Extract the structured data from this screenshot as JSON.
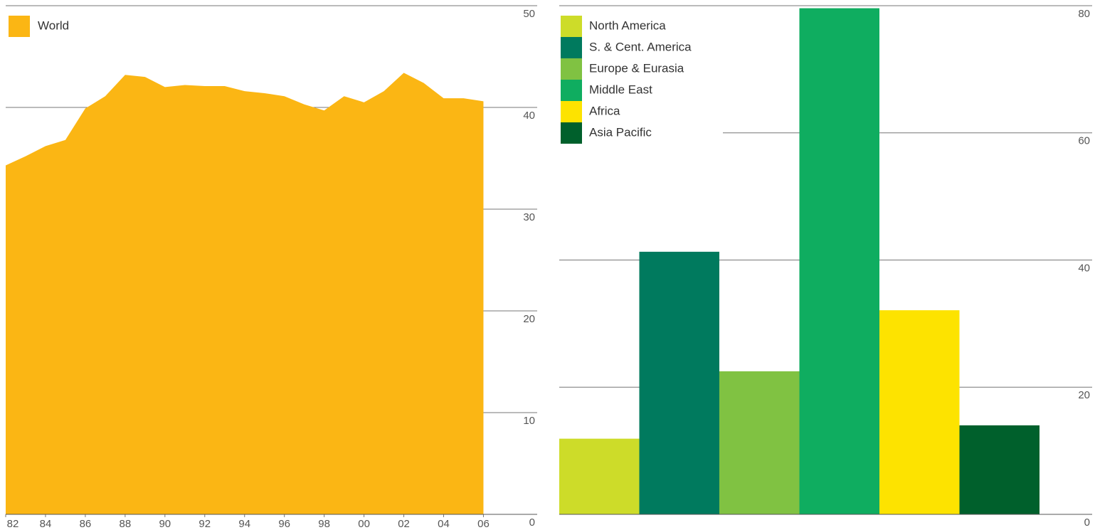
{
  "chart_data": [
    {
      "type": "area",
      "series": [
        {
          "name": "World",
          "color": "#fbb614",
          "values": [
            34.3,
            35.2,
            36.2,
            36.8,
            39.9,
            41.1,
            43.2,
            43.0,
            42.0,
            42.2,
            42.1,
            42.1,
            41.6,
            41.4,
            41.1,
            40.3,
            39.7,
            41.1,
            40.5,
            41.6,
            43.4,
            42.4,
            40.9,
            40.9,
            40.6
          ]
        }
      ],
      "x": [
        1982,
        1983,
        1984,
        1985,
        1986,
        1987,
        1988,
        1989,
        1990,
        1991,
        1992,
        1993,
        1994,
        1995,
        1996,
        1997,
        1998,
        1999,
        2000,
        2001,
        2002,
        2003,
        2004,
        2005,
        2006
      ],
      "xlim": [
        1982,
        2008.7
      ],
      "xticks": [
        {
          "value": 1982,
          "label": "82"
        },
        {
          "value": 1984,
          "label": "84"
        },
        {
          "value": 1986,
          "label": "86"
        },
        {
          "value": 1988,
          "label": "88"
        },
        {
          "value": 1990,
          "label": "90"
        },
        {
          "value": 1992,
          "label": "92"
        },
        {
          "value": 1994,
          "label": "94"
        },
        {
          "value": 1996,
          "label": "96"
        },
        {
          "value": 1998,
          "label": "98"
        },
        {
          "value": 2000,
          "label": "00"
        },
        {
          "value": 2002,
          "label": "02"
        },
        {
          "value": 2004,
          "label": "04"
        },
        {
          "value": 2006,
          "label": "06"
        }
      ],
      "ylim": [
        0,
        50
      ],
      "yticks": [
        0,
        10,
        20,
        30,
        40,
        50
      ],
      "grid": true,
      "legend": "top-left"
    },
    {
      "type": "bar",
      "categories": [
        "North America",
        "S. & Cent. America",
        "Europe & Eurasia",
        "Middle East",
        "Africa",
        "Asia Pacific"
      ],
      "values": [
        11.9,
        41.3,
        22.5,
        79.6,
        32.1,
        14.0
      ],
      "colors": [
        "#cddc29",
        "#007a5e",
        "#80c242",
        "#0fad60",
        "#fde300",
        "#00602c"
      ],
      "ylim": [
        0,
        80
      ],
      "yticks": [
        0,
        20,
        40,
        60,
        80
      ],
      "grid": true,
      "legend": "top-left"
    }
  ]
}
